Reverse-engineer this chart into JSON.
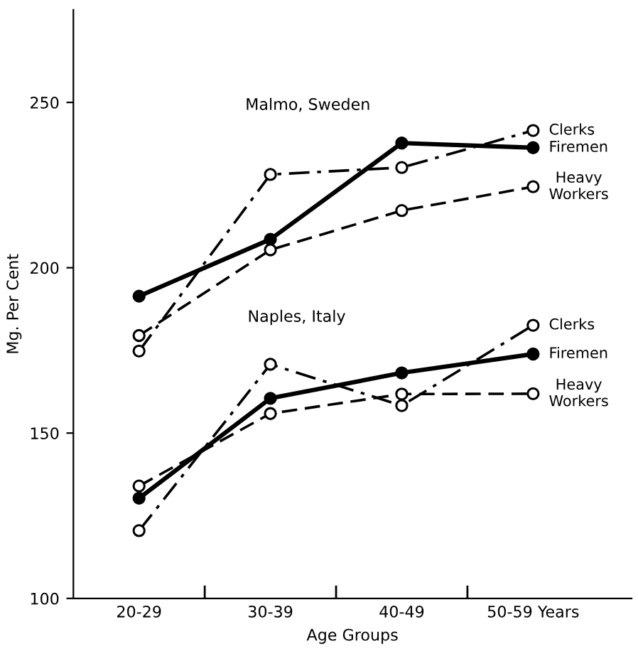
{
  "chart_data": {
    "type": "line",
    "xlabel": "Age Groups",
    "ylabel": "Mg. Per Cent",
    "categories": [
      "20-29",
      "30-39",
      "40-49",
      "50-59 Years"
    ],
    "ylim": [
      100,
      278
    ],
    "yticks": [
      100,
      150,
      200,
      250
    ],
    "grid": false,
    "legend": false,
    "annotations": [
      "Malmo, Sweden",
      "Naples, Italy"
    ],
    "series": [
      {
        "name": "Clerks",
        "color": "#000000",
        "line_style": "dashdot",
        "marker": "circle",
        "values": [
          174.8,
          228.2,
          230.3,
          241.5
        ]
      },
      {
        "name": "Firemen",
        "color": "#000000",
        "line_style": "solid",
        "marker": "circle",
        "values": [
          191.4,
          208.6,
          237.7,
          236.3
        ]
      },
      {
        "name": "Heavy\nWorkers",
        "color": "#000000",
        "line_style": "dashed",
        "marker": "circle",
        "values": [
          179.5,
          205.4,
          217.3,
          224.5
        ]
      },
      {
        "name": "Clerks",
        "color": "#000000",
        "line_style": "dashdot",
        "marker": "circle",
        "values": [
          120.5,
          170.8,
          158.3,
          182.6
        ]
      },
      {
        "name": "Firemen",
        "color": "#000000",
        "line_style": "solid",
        "marker": "circle",
        "values": [
          130.3,
          160.5,
          168.2,
          173.9
        ]
      },
      {
        "name": "Heavy\nWorkers",
        "color": "#000000",
        "line_style": "dashed",
        "marker": "circle",
        "values": [
          134.0,
          155.9,
          161.8,
          161.9
        ]
      }
    ]
  }
}
